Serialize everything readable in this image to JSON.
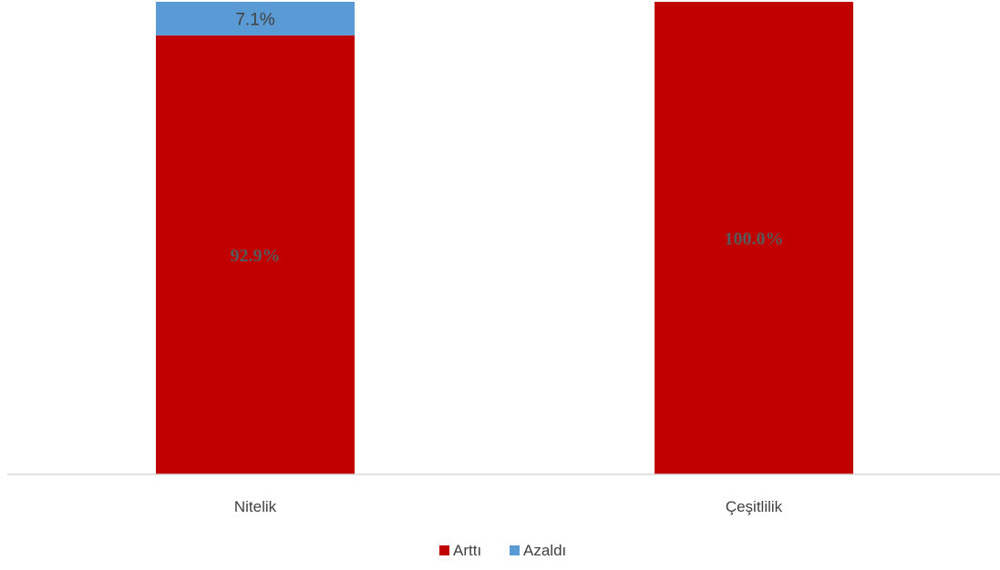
{
  "chart_data": {
    "type": "bar",
    "stacked": true,
    "categories": [
      "Nitelik",
      "Çeşitlilik"
    ],
    "series": [
      {
        "name": "Arttı",
        "values": [
          92.9,
          100.0
        ],
        "labels": [
          "92.9%",
          "100.0%"
        ],
        "color": "#C00000"
      },
      {
        "name": "Azaldı",
        "values": [
          7.1,
          0.0
        ],
        "labels": [
          "7.1%",
          ""
        ],
        "color": "#5B9BD5"
      }
    ],
    "ylim": [
      0,
      100
    ],
    "grid": false,
    "legend_position": "bottom"
  }
}
